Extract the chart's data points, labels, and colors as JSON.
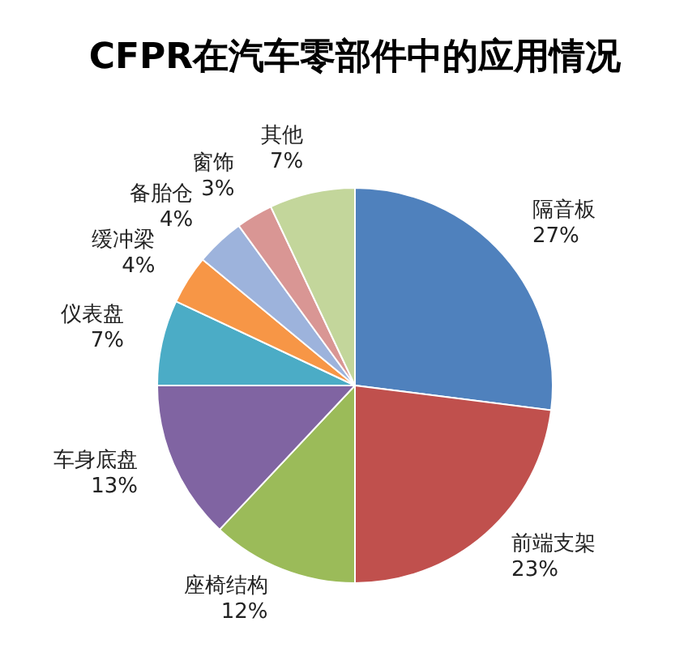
{
  "chart_data": {
    "type": "pie",
    "title": "CFPR在汽车零部件中的应用情况",
    "categories": [
      "隔音板",
      "前端支架",
      "座椅结构",
      "车身底盘",
      "仪表盘",
      "缓冲梁",
      "备胎仓",
      "窗饰",
      "其他"
    ],
    "values": [
      27,
      23,
      12,
      13,
      7,
      4,
      4,
      3,
      7
    ],
    "colors": [
      "#4f81bd",
      "#c0504d",
      "#9bbb59",
      "#8064a2",
      "#4bacc6",
      "#f79646",
      "#9db3dc",
      "#d99694",
      "#c3d69b"
    ],
    "value_labels": [
      "27%",
      "23%",
      "12%",
      "13%",
      "7%",
      "4%",
      "4%",
      "3%",
      "7%"
    ]
  }
}
